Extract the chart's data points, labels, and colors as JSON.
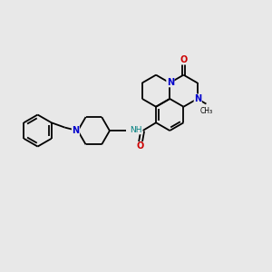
{
  "background_color": "#e8e8e8",
  "bond_color": "#000000",
  "nitrogen_color": "#0000cc",
  "oxygen_color": "#cc0000",
  "nh_color": "#008080",
  "lw": 1.3,
  "lw2": 0.9,
  "figsize": [
    3.0,
    3.0
  ],
  "dpi": 100,
  "xlim": [
    0,
    10
  ],
  "ylim": [
    0,
    10
  ]
}
